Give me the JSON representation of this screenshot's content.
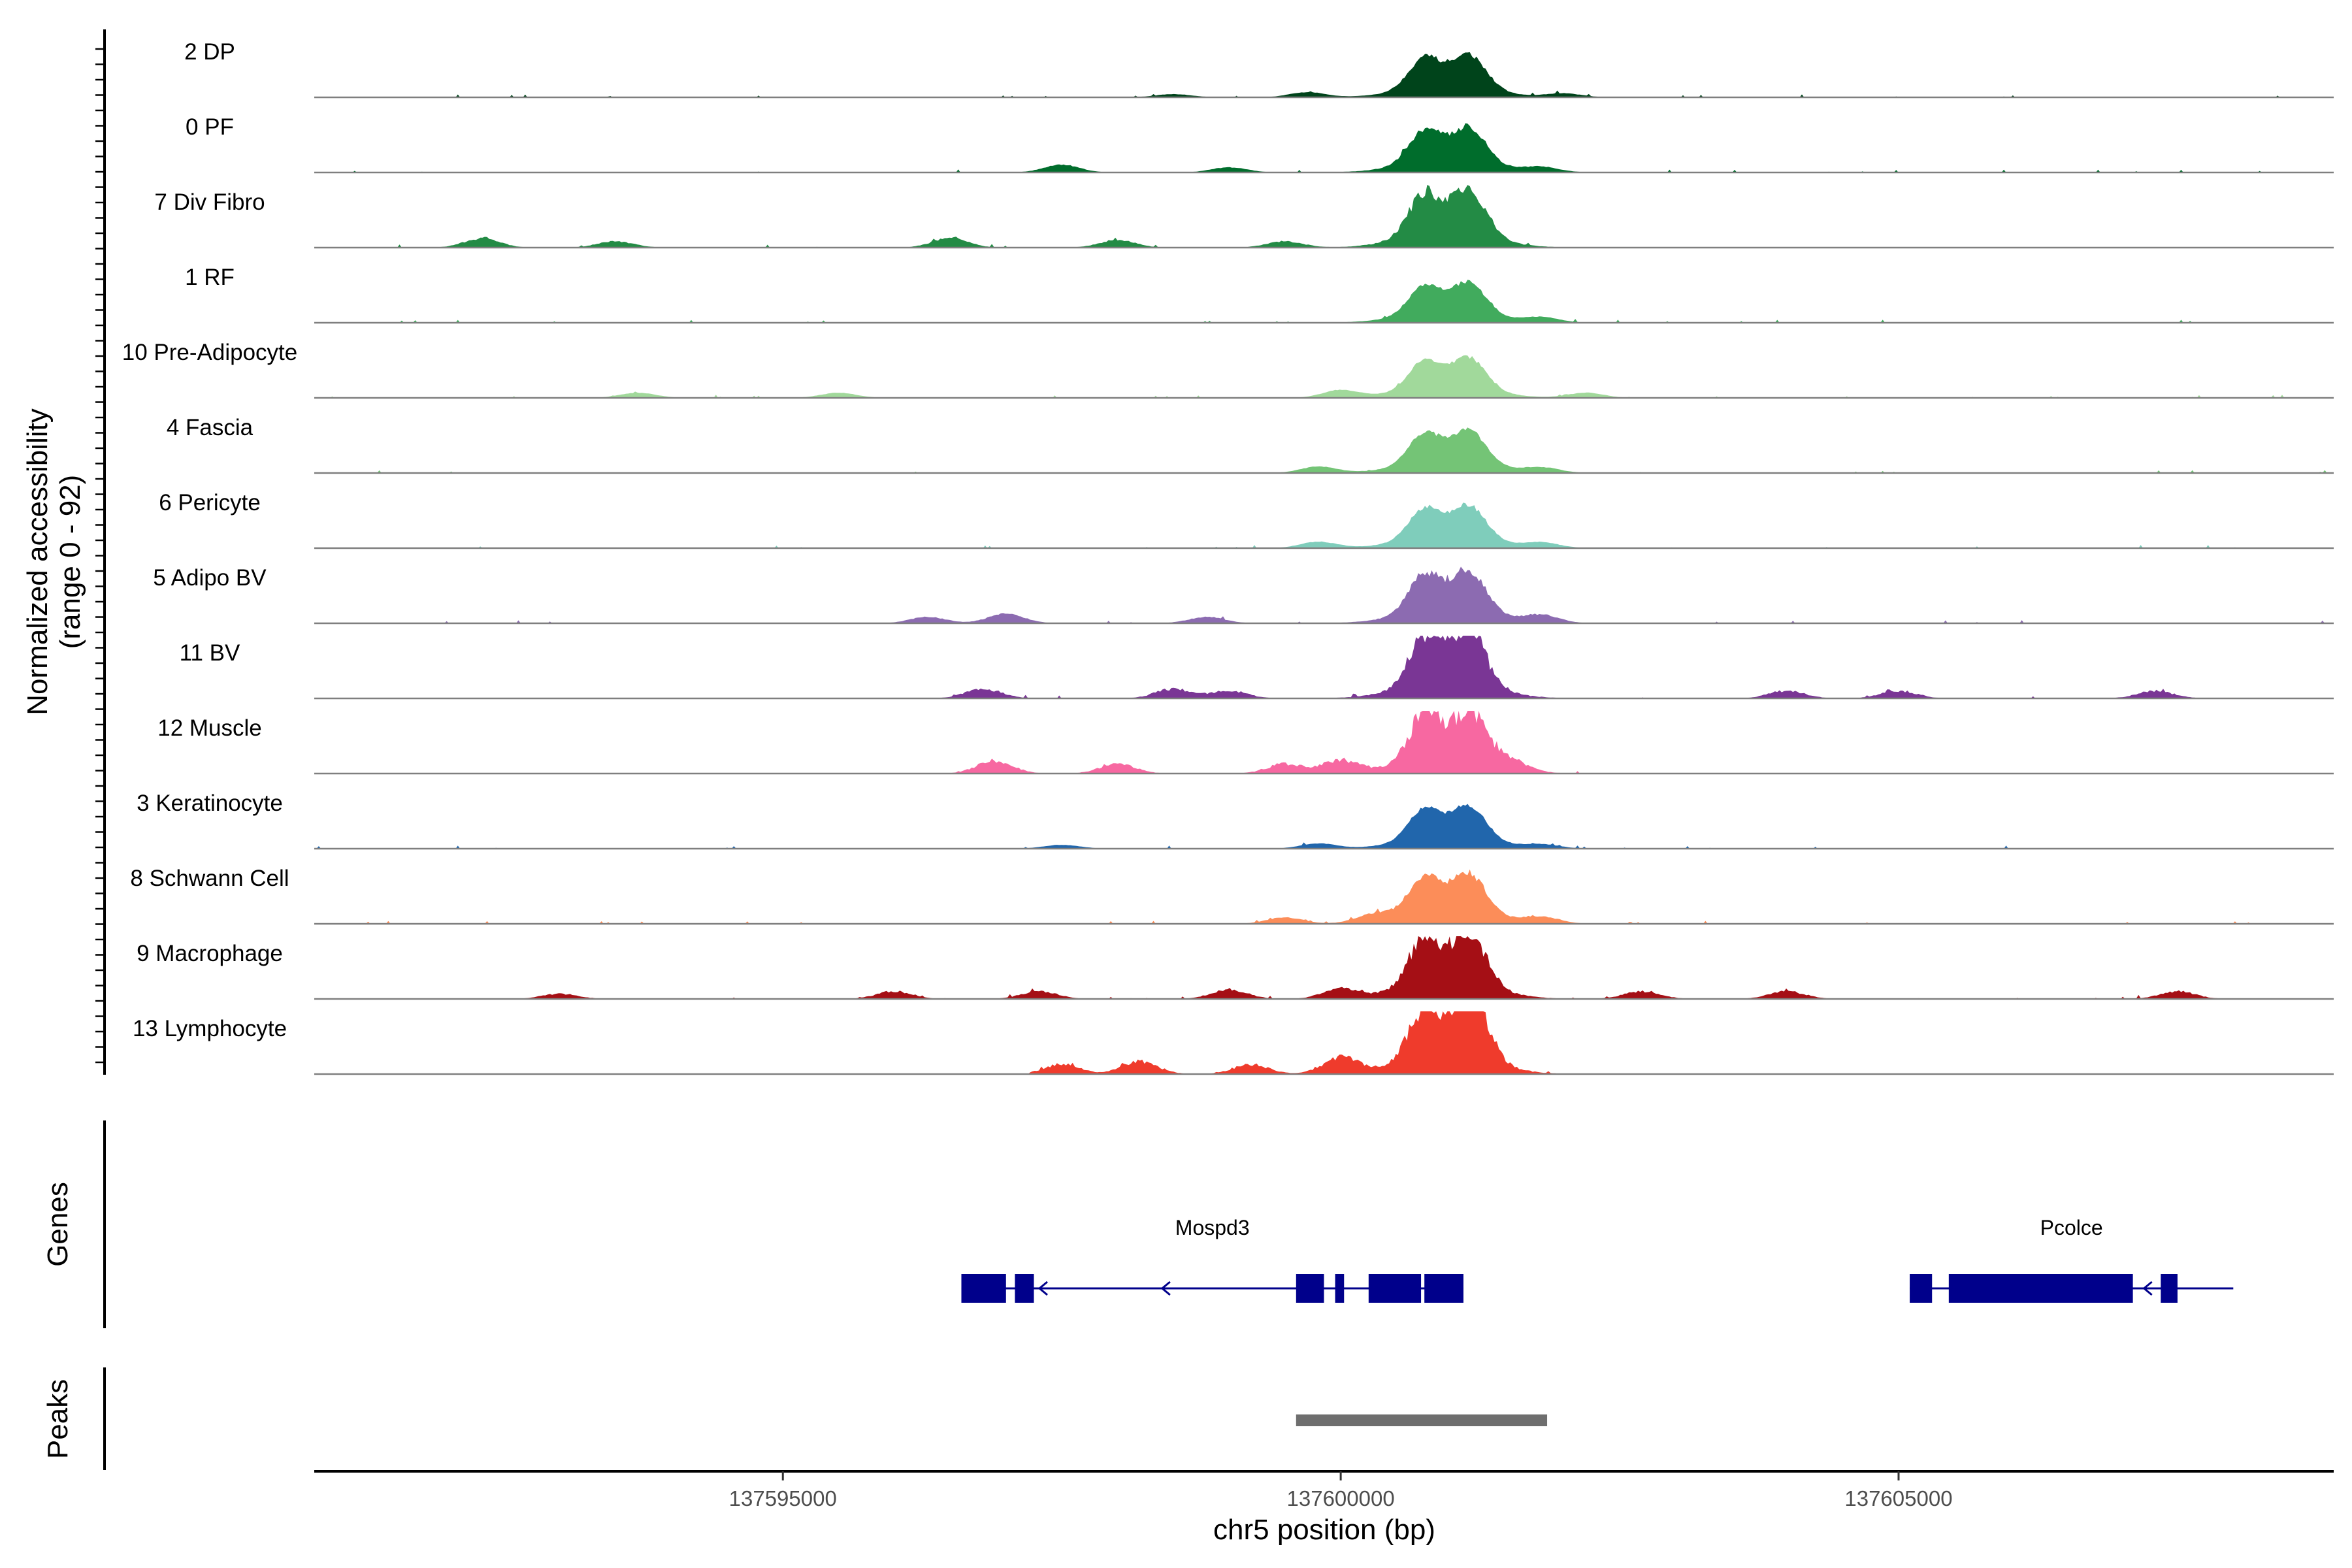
{
  "chart_data": {
    "type": "area",
    "title": "",
    "ylabel_line1": "Normalized accessibility",
    "ylabel_line2": "(range 0 - 92)",
    "y_range": [
      0,
      92
    ],
    "xlabel": "chr5 position (bp)",
    "x_range": [
      137590800,
      137608900
    ],
    "x_ticks": [
      137595000,
      137600000,
      137605000
    ],
    "x_tick_labels": [
      "137595000",
      "137600000",
      "137605000"
    ],
    "tracks": [
      {
        "name": "2 DP",
        "color": "#00441b",
        "peak_scale": 0.85,
        "noise": 0.1,
        "background": [
          [
            137598500,
            0.05
          ],
          [
            137599700,
            0.08
          ],
          [
            137602000,
            0.06
          ]
        ],
        "extent": [
          137590800,
          137608900
        ]
      },
      {
        "name": "0 PF",
        "color": "#006d2c",
        "peak_scale": 0.9,
        "noise": 0.12,
        "background": [
          [
            137597500,
            0.12
          ],
          [
            137599000,
            0.08
          ],
          [
            137601800,
            0.08
          ]
        ],
        "extent": [
          137590800,
          137608900
        ]
      },
      {
        "name": "7 Div Fibro",
        "color": "#238b45",
        "peak_scale": 1.15,
        "noise": 0.2,
        "background": [
          [
            137592300,
            0.14
          ],
          [
            137593500,
            0.1
          ],
          [
            137596500,
            0.15
          ],
          [
            137598000,
            0.12
          ],
          [
            137599500,
            0.1
          ]
        ],
        "extent": [
          137591500,
          137602000
        ]
      },
      {
        "name": "1 RF",
        "color": "#41ab5d",
        "peak_scale": 0.8,
        "noise": 0.08,
        "background": [
          [
            137601800,
            0.08
          ]
        ],
        "extent": [
          137590800,
          137608900
        ]
      },
      {
        "name": "10 Pre-Adipocyte",
        "color": "#a1d99b",
        "peak_scale": 0.8,
        "noise": 0.08,
        "background": [
          [
            137593700,
            0.08
          ],
          [
            137595500,
            0.08
          ],
          [
            137600000,
            0.12
          ],
          [
            137602200,
            0.08
          ]
        ],
        "extent": [
          137590800,
          137608900
        ]
      },
      {
        "name": "4 Fascia",
        "color": "#74c476",
        "peak_scale": 0.85,
        "noise": 0.09,
        "background": [
          [
            137599800,
            0.1
          ],
          [
            137601800,
            0.08
          ]
        ],
        "extent": [
          137590800,
          137608900
        ]
      },
      {
        "name": "6 Pericyte",
        "color": "#7fcdbb",
        "peak_scale": 0.85,
        "noise": 0.09,
        "background": [
          [
            137599800,
            0.1
          ],
          [
            137601800,
            0.08
          ]
        ],
        "extent": [
          137590800,
          137608900
        ]
      },
      {
        "name": "5 Adipo BV",
        "color": "#8c6bb1",
        "peak_scale": 1.05,
        "noise": 0.15,
        "background": [
          [
            137596300,
            0.1
          ],
          [
            137597000,
            0.15
          ],
          [
            137598800,
            0.1
          ],
          [
            137601800,
            0.12
          ]
        ],
        "extent": [
          137590800,
          137608900
        ]
      },
      {
        "name": "11 BV",
        "color": "#7a3695",
        "peak_scale": 1.3,
        "noise": 0.28,
        "background": [
          [
            137596800,
            0.15
          ],
          [
            137598500,
            0.15
          ],
          [
            137599000,
            0.12
          ],
          [
            137601000,
            0.12
          ],
          [
            137604000,
            0.12
          ],
          [
            137605000,
            0.12
          ],
          [
            137607300,
            0.12
          ]
        ],
        "extent": [
          137596400,
          137607800
        ]
      },
      {
        "name": "12 Muscle",
        "color": "#f768a1",
        "peak_scale": 1.25,
        "noise": 0.3,
        "background": [
          [
            137596900,
            0.2
          ],
          [
            137598000,
            0.15
          ],
          [
            137599500,
            0.15
          ],
          [
            137600000,
            0.2
          ],
          [
            137601500,
            0.15
          ]
        ],
        "extent": [
          137596500,
          137602200
        ]
      },
      {
        "name": "3 Keratinocyte",
        "color": "#2166ac",
        "peak_scale": 0.85,
        "noise": 0.08,
        "background": [
          [
            137597500,
            0.06
          ],
          [
            137599800,
            0.08
          ],
          [
            137601800,
            0.06
          ]
        ],
        "extent": [
          137590800,
          137608900
        ]
      },
      {
        "name": "8 Schwann Cell",
        "color": "#fc8d59",
        "peak_scale": 1.0,
        "noise": 0.12,
        "background": [
          [
            137599500,
            0.1
          ],
          [
            137600300,
            0.12
          ],
          [
            137601800,
            0.1
          ]
        ],
        "extent": [
          137590800,
          137608900
        ]
      },
      {
        "name": "9 Macrophage",
        "color": "#a50f15",
        "peak_scale": 1.3,
        "noise": 0.25,
        "background": [
          [
            137593000,
            0.08
          ],
          [
            137596000,
            0.12
          ],
          [
            137597300,
            0.12
          ],
          [
            137599000,
            0.15
          ],
          [
            137600000,
            0.15
          ],
          [
            137602700,
            0.12
          ],
          [
            137604000,
            0.12
          ],
          [
            137607500,
            0.12
          ]
        ],
        "extent": [
          137592500,
          137608000
        ]
      },
      {
        "name": "13 Lymphocyte",
        "color": "#ef3b2c",
        "peak_scale": 1.4,
        "noise": 0.3,
        "background": [
          [
            137597500,
            0.15
          ],
          [
            137598200,
            0.2
          ],
          [
            137599200,
            0.15
          ],
          [
            137600000,
            0.25
          ],
          [
            137601200,
            0.2
          ]
        ],
        "extent": [
          137597200,
          137602100
        ]
      }
    ],
    "genes_label": "Genes",
    "genes": [
      {
        "name": "Mospd3",
        "strand": "-",
        "start": 137596600,
        "end": 137601100,
        "exons": [
          [
            137596600,
            137597000
          ],
          [
            137597080,
            137597250
          ],
          [
            137599600,
            137599850
          ],
          [
            137599950,
            137600030
          ],
          [
            137600250,
            137600720
          ],
          [
            137600750,
            137601100
          ]
        ],
        "arrows": [
          137597300,
          137598400
        ]
      },
      {
        "name": "Pcolce",
        "strand": "-",
        "start": 137605100,
        "end": 137608000,
        "exons": [
          [
            137605100,
            137605300
          ],
          [
            137605450,
            137607100
          ],
          [
            137607350,
            137607500
          ]
        ],
        "arrows": [
          137607200
        ]
      }
    ],
    "peaks_label": "Peaks",
    "peaks": [
      [
        137599600,
        137601850
      ]
    ],
    "central_peaks": [
      {
        "center": 137600750,
        "width": 140,
        "height": 0.55
      },
      {
        "center": 137601150,
        "width": 150,
        "height": 0.6
      }
    ]
  }
}
